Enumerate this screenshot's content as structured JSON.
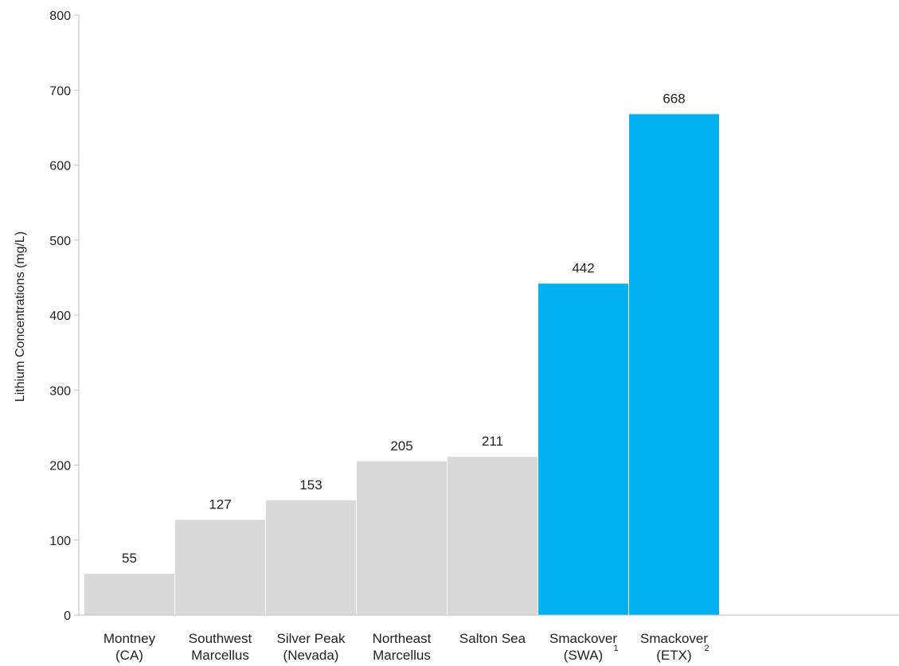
{
  "chart_data": {
    "type": "bar",
    "title": "",
    "xlabel": "",
    "ylabel": "Lithium Concentrations (mg/L)",
    "ylim": [
      0,
      800
    ],
    "yticks": [
      0,
      100,
      200,
      300,
      400,
      500,
      600,
      700,
      800
    ],
    "yticks_text": [
      "0",
      "100",
      "200",
      "300",
      "400",
      "500",
      "600",
      "700",
      "800"
    ],
    "grid": false,
    "categories": [
      {
        "lines": [
          "Montney",
          "(CA)"
        ],
        "sup": ""
      },
      {
        "lines": [
          "Southwest",
          "Marcellus"
        ],
        "sup": ""
      },
      {
        "lines": [
          "Silver Peak",
          "(Nevada)"
        ],
        "sup": ""
      },
      {
        "lines": [
          "Northeast",
          "Marcellus"
        ],
        "sup": ""
      },
      {
        "lines": [
          "Salton Sea"
        ],
        "sup": ""
      },
      {
        "lines": [
          "Smackover",
          "(SWA)"
        ],
        "sup": "1"
      },
      {
        "lines": [
          "Smackover",
          "(ETX)"
        ],
        "sup": "2"
      }
    ],
    "values": [
      55,
      127,
      153,
      205,
      211,
      442,
      668
    ],
    "value_labels": [
      "55",
      "127",
      "153",
      "205",
      "211",
      "442",
      "668"
    ],
    "bar_colors": [
      "#d9d9d9",
      "#d9d9d9",
      "#d9d9d9",
      "#d9d9d9",
      "#d9d9d9",
      "#00b0f0",
      "#00b0f0"
    ]
  }
}
